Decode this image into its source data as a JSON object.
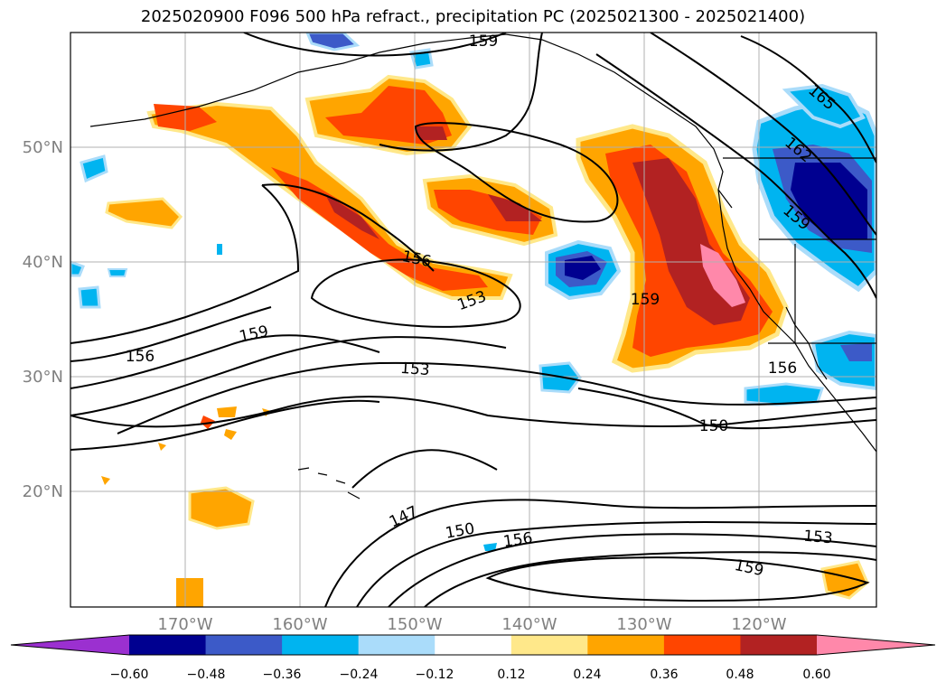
{
  "title": "2025020900 F096 500 hPa refract., precipitation PC (2025021300 - 2025021400)",
  "map": {
    "lat_labels": [
      "50°N",
      "40°N",
      "30°N",
      "20°N"
    ],
    "lon_labels": [
      "170°W",
      "160°W",
      "150°W",
      "140°W",
      "130°W",
      "120°W"
    ],
    "contour_labels": [
      "159",
      "165",
      "162",
      "159",
      "156",
      "153",
      "159",
      "156",
      "159",
      "153",
      "156",
      "150",
      "147",
      "150",
      "156",
      "153",
      "159"
    ]
  },
  "colorbar": {
    "colors": [
      "#9b30d0",
      "#000090",
      "#3c5ac8",
      "#00b4f0",
      "#aadcfa",
      "#ffffff",
      "#ffe88a",
      "#ffa500",
      "#ff4500",
      "#b22222",
      "#ff88aa"
    ],
    "tick_labels": [
      "−0.60",
      "−0.48",
      "−0.36",
      "−0.24",
      "−0.12",
      "0.12",
      "0.24",
      "0.36",
      "0.48",
      "0.60"
    ]
  }
}
